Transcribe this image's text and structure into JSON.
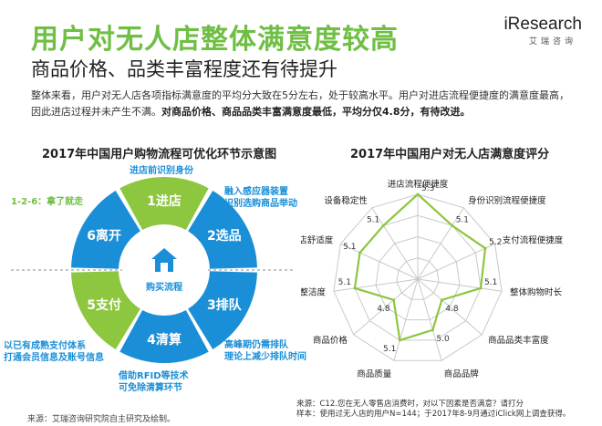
{
  "header": {
    "title": "用户对无人店整体满意度较高",
    "subtitle": "商品价格、品类丰富程度还有待提升",
    "logo_main": "iResearch",
    "logo_sub": "艾瑞咨询"
  },
  "intro": {
    "normal": "整体来看，用户对无人店各项指标满意度的平均分大致在5分左右，处于较高水平。用户对进店流程便捷度的满意度最高，因此进店过程并未产生不满。",
    "bold": "对商品价格、商品品类丰富满意度最低，平均分仅4.8分，有待改进。"
  },
  "wheel": {
    "title": "2017年中国用户购物流程可优化环节示意图",
    "center_label": "购买流程",
    "segments": [
      {
        "label": "1进店",
        "color": "#8dc63f"
      },
      {
        "label": "2选品",
        "color": "#1a8fd8"
      },
      {
        "label": "3排队",
        "color": "#1a8fd8"
      },
      {
        "label": "4清算",
        "color": "#1a8fd8"
      },
      {
        "label": "5支付",
        "color": "#8dc63f"
      },
      {
        "label": "6离开",
        "color": "#1a8fd8"
      }
    ],
    "annotations": {
      "top": "进店前识别身份",
      "right_top_1": "融入感应器装置",
      "right_top_2": "识别选购商品举动",
      "right_bottom_1": "高峰期仍需排队",
      "right_bottom_2": "理论上减少排队时间",
      "bottom_1": "借助RFID等技术",
      "bottom_2": "可免除清算环节",
      "left_bottom_1": "以已有成熟支付体系",
      "left_bottom_2": "打通会员信息及账号信息",
      "left_top": "1-2-6：拿了就走"
    }
  },
  "chart_data": {
    "type": "radar",
    "title": "2017年中国用户对无人店满意度评分",
    "categories": [
      "进店流程便捷度",
      "身份识别流程便捷度",
      "支付流程便捷度",
      "整体购物时长",
      "商品品类丰富度",
      "商品品牌",
      "商品质量",
      "商品价格",
      "门店整洁度",
      "门店舒适度",
      "设备稳定性"
    ],
    "values": [
      5.3,
      5.1,
      5.2,
      5.1,
      4.8,
      5.0,
      5.1,
      4.8,
      5.1,
      5.1,
      5.1
    ],
    "value_labels": [
      "5.3",
      "5.1",
      "5.2",
      "5.1",
      "4.8",
      "5.0",
      "5.1",
      "4.8",
      "5.1",
      "5.1",
      "5.1"
    ],
    "range": [
      4.5,
      5.3
    ],
    "series_color": "#8dc63f",
    "grid_color": "#c9c9c9"
  },
  "footer": {
    "source": "来源：艾瑞咨询研究院自主研究及绘制。",
    "note_1": "来源：C12.您在无人零售店消费时，对以下因素是否满意？请打分",
    "note_2": "样本：使用过无人店的用户N=144；于2017年8-9月通过iClick网上调查获得。"
  }
}
